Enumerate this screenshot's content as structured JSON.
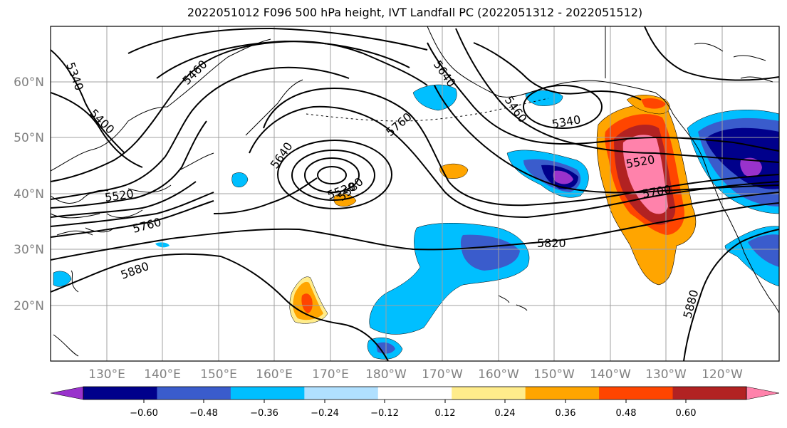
{
  "title": "2022051012 F096 500 hPa height, IVT Landfall PC (2022051312 - 2022051512)",
  "map": {
    "lat_labels": [
      "60°N",
      "50°N",
      "40°N",
      "30°N",
      "20°N"
    ],
    "lon_labels": [
      "130°E",
      "140°E",
      "150°E",
      "160°E",
      "170°E",
      "180°W",
      "170°W",
      "160°W",
      "150°W",
      "140°W",
      "130°W",
      "120°W"
    ],
    "contour_labels": [
      {
        "id": "c5340a",
        "text": "5340"
      },
      {
        "id": "c5400",
        "text": "5400"
      },
      {
        "id": "c5460a",
        "text": "5460"
      },
      {
        "id": "c5520a",
        "text": "5520"
      },
      {
        "id": "c5760a",
        "text": "5760"
      },
      {
        "id": "c5880a",
        "text": "5880"
      },
      {
        "id": "c5640a",
        "text": "5640"
      },
      {
        "id": "c5520b",
        "text": "5520"
      },
      {
        "id": "c5580",
        "text": "5580"
      },
      {
        "id": "c5760b",
        "text": "5760"
      },
      {
        "id": "c5640b",
        "text": "5640"
      },
      {
        "id": "c5460b",
        "text": "5460"
      },
      {
        "id": "c5340b",
        "text": "5340"
      },
      {
        "id": "c5520c",
        "text": "5520"
      },
      {
        "id": "c5700",
        "text": "5700"
      },
      {
        "id": "c5820",
        "text": "5820"
      },
      {
        "id": "c5880b",
        "text": "5880"
      }
    ]
  },
  "colorbar": {
    "colors": [
      "#9932cc",
      "#00008b",
      "#3a5ccc",
      "#00bfff",
      "#b0e0ff",
      "#ffffff",
      "#ffec8b",
      "#ffa500",
      "#ff4500",
      "#b22222",
      "#ff82ab"
    ],
    "ticks": [
      "−0.60",
      "−0.48",
      "−0.36",
      "−0.24",
      "−0.12",
      "0.12",
      "0.24",
      "0.36",
      "0.48",
      "0.60"
    ]
  }
}
